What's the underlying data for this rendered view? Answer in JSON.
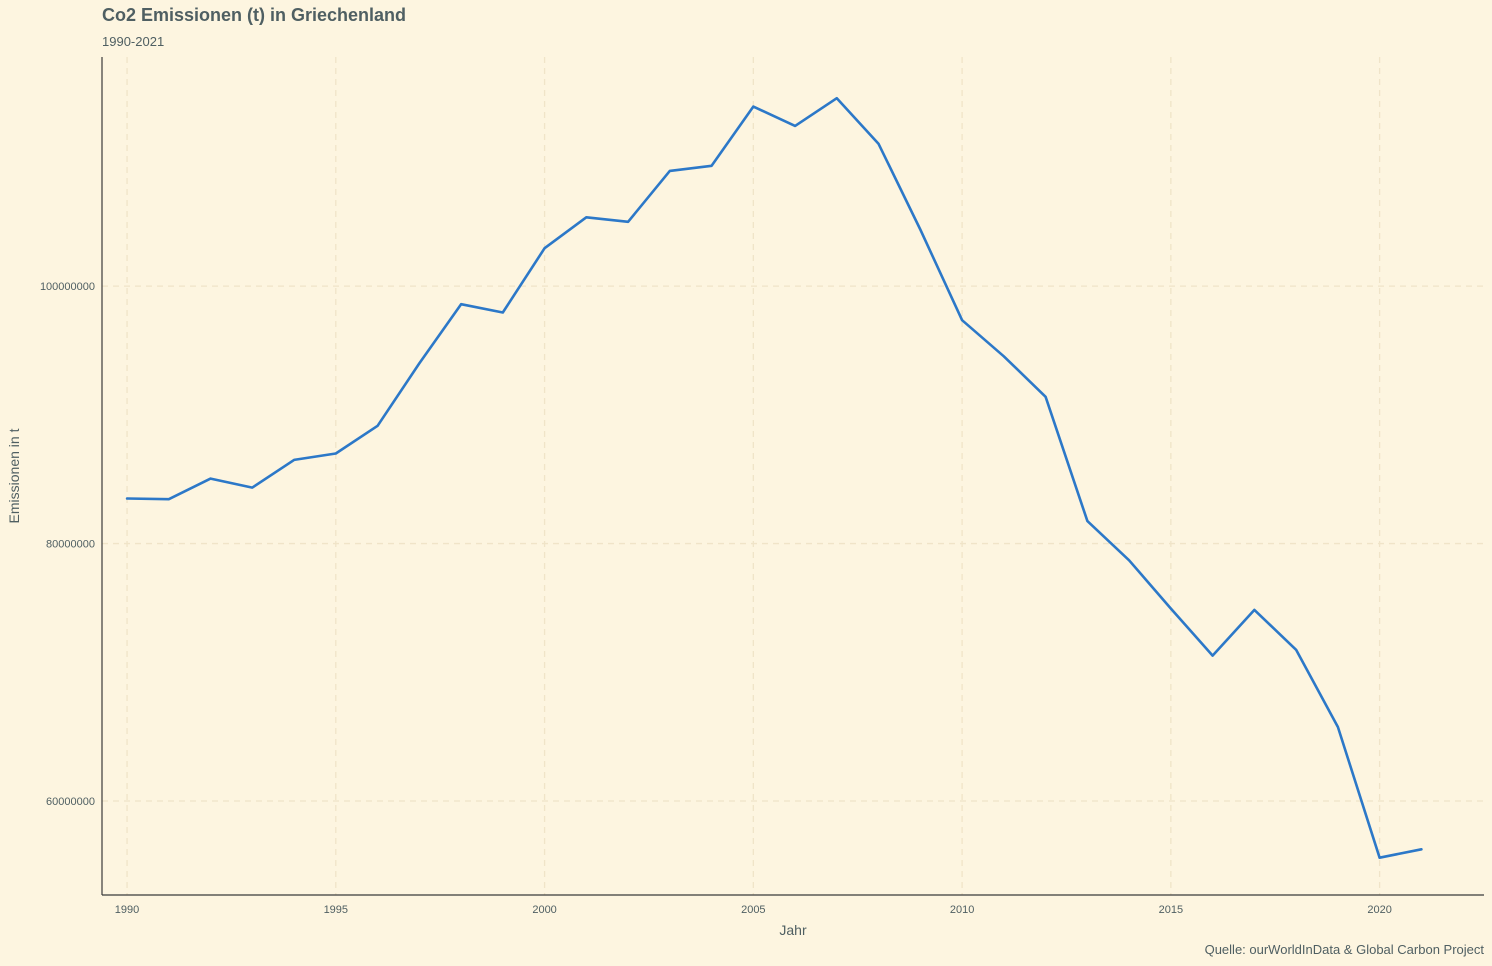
{
  "chart_data": {
    "type": "line",
    "title": "Co2 Emissionen (t) in Griechenland",
    "subtitle": "1990-2021",
    "caption": "Quelle: ourWorldInData & Global Carbon Project",
    "xlabel": "Jahr",
    "ylabel": "Emissionen in t",
    "x_ticks": [
      1990,
      1995,
      2000,
      2005,
      2010,
      2015,
      2020
    ],
    "y_ticks": [
      60000000,
      80000000,
      100000000
    ],
    "y_tick_labels": [
      "60000000",
      "80000000",
      "100000000"
    ],
    "xlim": [
      1989.4,
      2022.5
    ],
    "ylim": [
      52700000,
      117800000
    ],
    "grid": true,
    "line_color": "#2c78c8",
    "series": [
      {
        "name": "Griechenland",
        "x": [
          1990,
          1991,
          1992,
          1993,
          1994,
          1995,
          1996,
          1997,
          1998,
          1999,
          2000,
          2001,
          2002,
          2003,
          2004,
          2005,
          2006,
          2007,
          2008,
          2009,
          2010,
          2011,
          2012,
          2013,
          2014,
          2015,
          2016,
          2017,
          2018,
          2019,
          2020,
          2021
        ],
        "values": [
          83500000,
          83450000,
          85050000,
          84350000,
          86500000,
          87000000,
          89150000,
          94000000,
          98600000,
          97950000,
          102950000,
          105350000,
          105000000,
          108950000,
          109350000,
          113950000,
          112450000,
          114600000,
          111050000,
          104400000,
          97350000,
          94550000,
          91400000,
          81750000,
          78700000,
          74950000,
          71300000,
          74850000,
          71750000,
          65750000,
          55600000,
          56250000
        ]
      }
    ]
  }
}
